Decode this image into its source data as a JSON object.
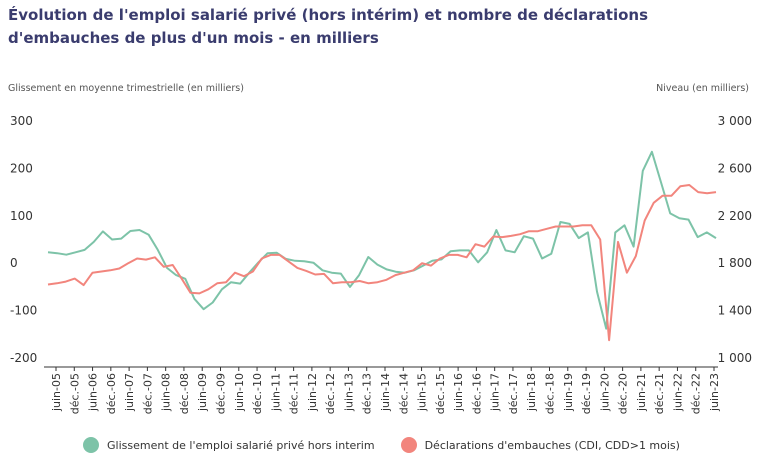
{
  "title": "Évolution de l'emploi salarié privé (hors intérim) et nombre de déclarations d'embauches de plus d'un mois - en milliers",
  "colors": {
    "series1": "#7dc3a8",
    "series2": "#f2857d",
    "axis": "#333333"
  },
  "chart_data": {
    "type": "line",
    "title": "Évolution de l'emploi salarié privé (hors intérim) et nombre de déclarations d'embauches de plus d'un mois - en milliers",
    "ylabel_left": "Glissement en moyenne trimestrielle (en milliers)",
    "ylabel_right": "Niveau (en milliers)",
    "ylim_left": [
      -200,
      300
    ],
    "ylim_right": [
      1000,
      3000
    ],
    "yticks_left": [
      "300",
      "200",
      "100",
      "0",
      "-100",
      "-200"
    ],
    "yticks_right": [
      "3 000",
      "2 600",
      "2 200",
      "1 800",
      "1 400",
      "1 000"
    ],
    "x_tick_labels": [
      "juin-05",
      "déc.-05",
      "juin-06",
      "déc.-06",
      "juin-07",
      "déc.-07",
      "juin-08",
      "déc.-08",
      "juin-09",
      "déc.-09",
      "juin-10",
      "déc.-10",
      "juin-11",
      "déc.-11",
      "juin-12",
      "déc.-12",
      "juin-13",
      "déc.-13",
      "juin-14",
      "déc.-14",
      "juin-15",
      "déc.-15",
      "juin-16",
      "déc.-16",
      "juin-17",
      "déc.-17",
      "juin-18",
      "déc.-18",
      "juin-19",
      "déc.-19",
      "juin-20",
      "déc.-20",
      "juin-21",
      "déc.-21",
      "juin-22",
      "déc.-22",
      "juin-23"
    ],
    "legend_position": "bottom",
    "grid": false,
    "series": [
      {
        "name": "Glissement de l'emploi salarié privé hors interim",
        "axis": "left",
        "values": [
          23,
          21,
          18,
          23,
          28,
          45,
          67,
          50,
          52,
          68,
          70,
          60,
          28,
          -10,
          -25,
          -33,
          -75,
          -97,
          -83,
          -55,
          -40,
          -43,
          -20,
          2,
          21,
          22,
          9,
          5,
          4,
          1,
          -15,
          -20,
          -22,
          -50,
          -25,
          13,
          -3,
          -13,
          -18,
          -20,
          -15,
          -5,
          5,
          8,
          25,
          27,
          27,
          2,
          23,
          70,
          27,
          23,
          57,
          52,
          10,
          20,
          87,
          83,
          53,
          65,
          -60,
          -138,
          65,
          80,
          35,
          195,
          235,
          170,
          105,
          95,
          92,
          55,
          65,
          53
        ]
      },
      {
        "name": "Déclarations d'embauches (CDI, CDD>1 mois)",
        "axis": "right",
        "values": [
          1620,
          1630,
          1645,
          1670,
          1615,
          1720,
          1730,
          1740,
          1755,
          1800,
          1840,
          1830,
          1850,
          1770,
          1785,
          1670,
          1550,
          1545,
          1580,
          1630,
          1640,
          1720,
          1690,
          1730,
          1840,
          1870,
          1870,
          1815,
          1760,
          1735,
          1705,
          1710,
          1630,
          1640,
          1640,
          1650,
          1630,
          1640,
          1660,
          1700,
          1720,
          1740,
          1800,
          1780,
          1840,
          1870,
          1870,
          1850,
          1960,
          1940,
          2025,
          2020,
          2030,
          2045,
          2070,
          2070,
          2090,
          2110,
          2110,
          2110,
          2120,
          2120,
          2000,
          1150,
          1980,
          1720,
          1860,
          2160,
          2310,
          2370,
          2370,
          2450,
          2460,
          2400,
          2390,
          2400
        ]
      }
    ]
  }
}
